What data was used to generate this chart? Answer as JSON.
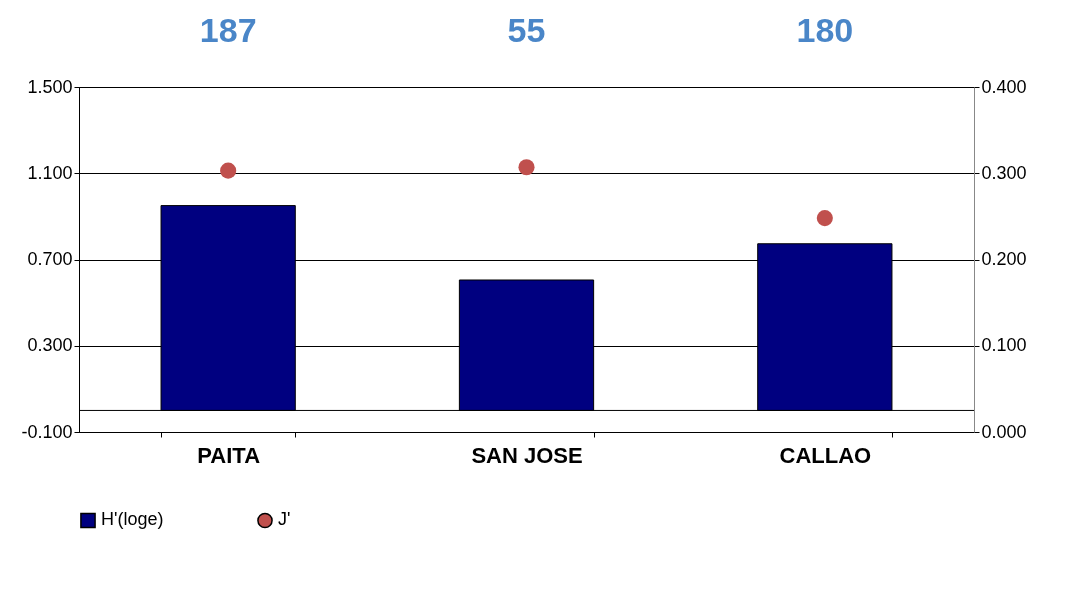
{
  "chart_data": {
    "type": "bar",
    "categories": [
      "PAITA",
      "SAN JOSE",
      "CALLAO"
    ],
    "series": [
      {
        "name": "H'(loge)",
        "type": "bar",
        "color": "#000080",
        "values": [
          0.95,
          0.605,
          0.773
        ]
      },
      {
        "name": "J'",
        "type": "scatter",
        "axis": "y2",
        "color": "#c0504d",
        "values": [
          0.303,
          0.307,
          0.248
        ]
      }
    ],
    "ylim": [
      -0.1,
      1.5
    ],
    "yticks": [
      {
        "value": -0.1,
        "label": "-0.100"
      },
      {
        "value": 0.3,
        "label": "0.300"
      },
      {
        "value": 0.7,
        "label": "0.700"
      },
      {
        "value": 1.1,
        "label": "1.100"
      },
      {
        "value": 1.5,
        "label": "1.500"
      }
    ],
    "y2lim": [
      0.0,
      0.4
    ],
    "y2ticks": [
      {
        "value": 0.0,
        "label": "0.000"
      },
      {
        "value": 0.1,
        "label": "0.100"
      },
      {
        "value": 0.2,
        "label": "0.200"
      },
      {
        "value": 0.3,
        "label": "0.300"
      },
      {
        "value": 0.4,
        "label": "0.400"
      }
    ],
    "ref_lines": [
      {
        "axis": "y",
        "value": 0
      }
    ],
    "annotations": [
      "187",
      "55",
      "180"
    ],
    "grid": "y",
    "legend": "bottom",
    "marker": "circle"
  }
}
